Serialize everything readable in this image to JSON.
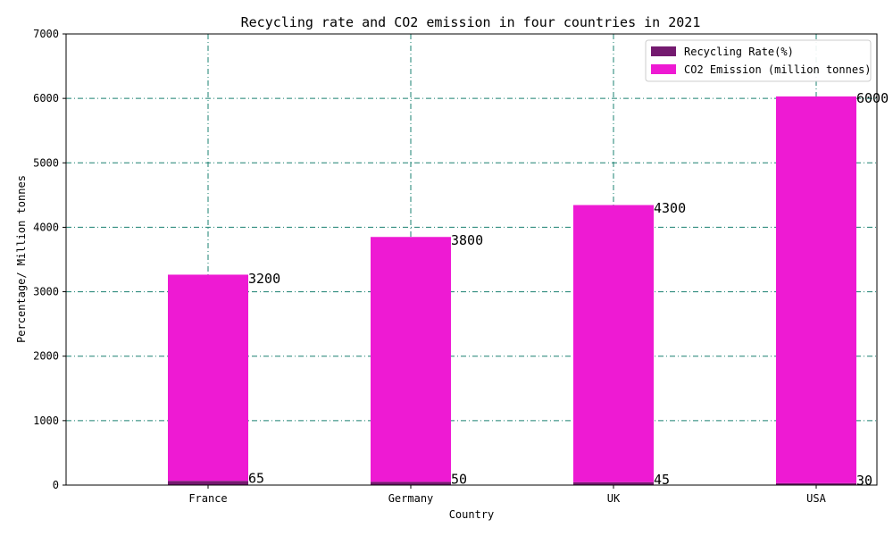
{
  "chart_data": {
    "type": "bar",
    "stacked": true,
    "title": "Recycling rate and CO2 emission in four countries in 2021",
    "xlabel": "Country",
    "ylabel": "Percentage/ Million tonnes",
    "categories": [
      "France",
      "Germany",
      "UK",
      "USA"
    ],
    "series": [
      {
        "name": "Recycling Rate(%)",
        "values": [
          65,
          50,
          45,
          30
        ],
        "color": "#741a6f"
      },
      {
        "name": "CO2 Emission (million tonnes)",
        "values": [
          3200,
          3800,
          4300,
          6000
        ],
        "color": "#ee1ad3"
      }
    ],
    "ylim": [
      0,
      7000
    ],
    "yticks": [
      "0",
      "1000",
      "2000",
      "3000",
      "4000",
      "5000",
      "6000",
      "7000"
    ],
    "grid": true,
    "grid_color": "#1a8070",
    "legend": "top-right"
  }
}
